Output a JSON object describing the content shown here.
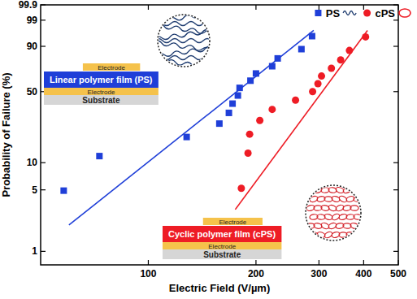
{
  "chart_data": {
    "type": "weibull",
    "x_label": "Electric Field (V/µm)",
    "y_label": "Probability of Failure (%)",
    "log": "x",
    "xlim": [
      50,
      500
    ],
    "xticks": [
      100,
      200,
      300,
      400,
      500
    ],
    "ylim": [
      0.7,
      99.9
    ],
    "yticks": [
      1,
      5,
      10,
      50,
      90,
      99,
      99.9
    ],
    "legend": "top-right",
    "series": [
      {
        "name": "PS",
        "type": "scatter",
        "marker": "square",
        "color": "#1f3fd8",
        "x": [
          58,
          73,
          128,
          158,
          168,
          172,
          178,
          180,
          193,
          200,
          222,
          230,
          268,
          287
        ],
        "values": [
          4.9,
          11.8,
          18.8,
          25.7,
          32.6,
          39.6,
          46.5,
          53.5,
          60.4,
          67.4,
          74.3,
          81.2,
          88.2,
          95.1
        ]
      },
      {
        "name": "cPS",
        "type": "scatter",
        "marker": "circle",
        "color": "#ee1c25",
        "x": [
          182,
          190,
          192,
          205,
          222,
          258,
          288,
          298,
          305,
          325,
          345,
          365,
          405
        ],
        "values": [
          5.2,
          12.7,
          20.1,
          27.6,
          35.1,
          42.5,
          50,
          57.5,
          64.9,
          72.4,
          79.9,
          87.3,
          94.8
        ]
      },
      {
        "type": "line",
        "line_style": "solid",
        "color": "#1f3fd8",
        "x": [
          60,
          290
        ],
        "values": [
          2,
          97
        ]
      },
      {
        "type": "line",
        "line_style": "solid",
        "color": "#ee1c25",
        "x": [
          175,
          410
        ],
        "values": [
          3,
          97
        ]
      }
    ],
    "annotations": [
      [
        "Electrode",
        "Linear polymer film (PS)",
        "Electrode",
        "Substrate"
      ],
      [
        "Electrode",
        "Cyclic polymer film (cPS)",
        "Electrode",
        "Substrate"
      ]
    ]
  }
}
